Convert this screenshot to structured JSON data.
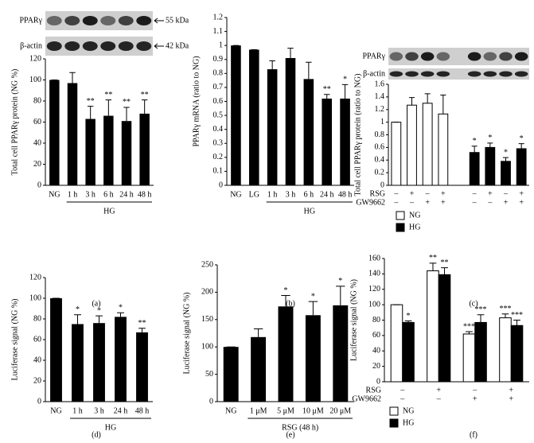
{
  "chart_data": [
    {
      "type": "bar",
      "panel_label": "(a)",
      "blot_labels": [
        "PPARγ",
        "β-actin"
      ],
      "blot_sizes": [
        "55 kDa",
        "42 kDa"
      ],
      "y_label": "Total cell PPARγ protein (NG %)",
      "categories": [
        "NG",
        "1 h",
        "3 h",
        "6 h",
        "24 h",
        "48 h"
      ],
      "values": [
        100,
        97,
        63,
        66,
        61,
        68
      ],
      "errors": [
        0,
        10,
        12,
        15,
        13,
        13
      ],
      "stars": [
        null,
        null,
        "**",
        "**",
        "**",
        "**"
      ],
      "group_label": "HG",
      "color": "#000000",
      "ylim": [
        0,
        120
      ],
      "yticks": [
        0,
        20,
        40,
        60,
        80,
        100,
        120
      ]
    },
    {
      "type": "bar",
      "panel_label": "(b)",
      "y_label": "PPARγ mRNA (ratio to NG)",
      "categories": [
        "NG",
        "LG",
        "1 h",
        "3 h",
        "6 h",
        "24 h",
        "48 h"
      ],
      "values": [
        1,
        0.97,
        0.83,
        0.91,
        0.76,
        0.62,
        0.62
      ],
      "errors": [
        0,
        0,
        0.06,
        0.07,
        0.12,
        0.03,
        0.1
      ],
      "stars": [
        null,
        null,
        null,
        null,
        null,
        "**",
        "*"
      ],
      "group_label": "HG",
      "color": "#000000",
      "ylim": [
        0,
        1.2
      ],
      "yticks": [
        0,
        0.1,
        0.2,
        0.3,
        0.4,
        0.5,
        0.6,
        0.7,
        0.8,
        0.9,
        1,
        1.1,
        1.2
      ]
    },
    {
      "type": "grouped_bar",
      "panel_label": "(c)",
      "blot_labels": [
        "PPARγ",
        "β-actin"
      ],
      "y_label": "Total cell PPARγ protein (ratio to NG)",
      "series": [
        {
          "name": "NG",
          "color": "#ffffff",
          "values": [
            1,
            1.27,
            1.3,
            1.13
          ],
          "errors": [
            0,
            0.12,
            0.15,
            0.3
          ]
        },
        {
          "name": "HG",
          "color": "#000000",
          "values": [
            0.52,
            0.6,
            0.38,
            0.58
          ],
          "errors": [
            0.1,
            0.07,
            0.06,
            0.08
          ],
          "stars": [
            "*",
            "*",
            "*",
            "*"
          ]
        }
      ],
      "treatments": [
        {
          "name": "RSG",
          "signs": [
            "–",
            "+",
            "–",
            "+"
          ]
        },
        {
          "name": "GW9662",
          "signs": [
            "–",
            "–",
            "+",
            "+"
          ]
        }
      ],
      "ylim": [
        0,
        1.6
      ],
      "yticks": [
        0,
        0.2,
        0.4,
        0.6,
        0.8,
        1,
        1.2,
        1.4,
        1.6
      ]
    },
    {
      "type": "bar",
      "panel_label": "(d)",
      "y_label": "Luciferase signal (NG %)",
      "categories": [
        "NG",
        "1 h",
        "3 h",
        "24 h",
        "48 h"
      ],
      "values": [
        100,
        75,
        76,
        82,
        67
      ],
      "errors": [
        0,
        9,
        7,
        4,
        4
      ],
      "stars": [
        null,
        "*",
        "*",
        "*",
        "**"
      ],
      "group_label": "HG",
      "color": "#000000",
      "ylim": [
        0,
        120
      ],
      "yticks": [
        0,
        20,
        40,
        60,
        80,
        100,
        120
      ]
    },
    {
      "type": "bar",
      "panel_label": "(e)",
      "y_label": "Luciferase signal (NG %)",
      "categories": [
        "NG",
        "1 μM",
        "5 μM",
        "10 μM",
        "20 μM"
      ],
      "values": [
        100,
        118,
        174,
        158,
        176
      ],
      "errors": [
        0,
        15,
        20,
        25,
        35
      ],
      "stars": [
        null,
        null,
        "*",
        "*",
        "*"
      ],
      "group_label": "RSG (48 h)",
      "color": "#000000",
      "ylim": [
        0,
        250
      ],
      "yticks": [
        0,
        50,
        100,
        150,
        200,
        250
      ]
    },
    {
      "type": "grouped_bar",
      "panel_label": "(f)",
      "y_label": "Luciferase signal (NG %)",
      "series": [
        {
          "name": "NG",
          "color": "#ffffff",
          "values": [
            100,
            144,
            62,
            83
          ],
          "errors": [
            0,
            10,
            3,
            5
          ],
          "stars": [
            null,
            "**",
            "***",
            "***"
          ]
        },
        {
          "name": "HG",
          "color": "#000000",
          "values": [
            77,
            139,
            77,
            73
          ],
          "errors": [
            2,
            9,
            10,
            7
          ],
          "stars": [
            "*",
            "**",
            "***",
            "***"
          ]
        }
      ],
      "treatments": [
        {
          "name": "RSG",
          "signs": [
            "–",
            "+",
            "–",
            "+"
          ]
        },
        {
          "name": "GW9662",
          "signs": [
            "–",
            "–",
            "+",
            "+"
          ]
        }
      ],
      "ylim": [
        0,
        160
      ],
      "yticks": [
        0,
        20,
        40,
        60,
        80,
        100,
        120,
        140,
        160
      ]
    }
  ]
}
